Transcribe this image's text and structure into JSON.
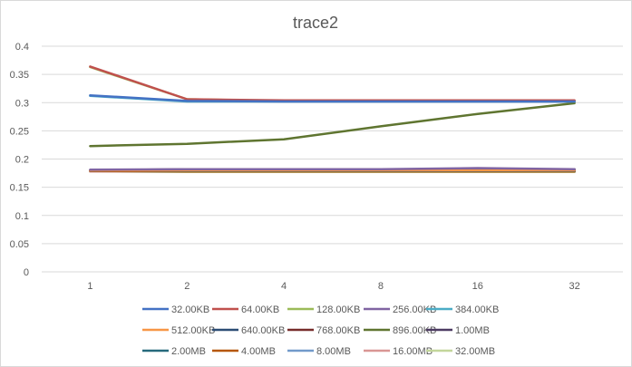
{
  "chart_data": {
    "type": "line",
    "title": "trace2",
    "xlabel": "",
    "ylabel": "",
    "categories": [
      "1",
      "2",
      "4",
      "8",
      "16",
      "32"
    ],
    "ylim": [
      0,
      0.4
    ],
    "yticks": [
      "0",
      "0.05",
      "0.1",
      "0.15",
      "0.2",
      "0.25",
      "0.3",
      "0.35",
      "0.4"
    ],
    "grid": true,
    "legend_position": "bottom",
    "series": [
      {
        "name": "32.00KB",
        "color": "#4472C4",
        "values": [
          0.313,
          0.303,
          0.302,
          0.302,
          0.302,
          0.302
        ]
      },
      {
        "name": "64.00KB",
        "color": "#C0504D",
        "values": [
          0.364,
          0.306,
          0.304,
          0.304,
          0.304,
          0.304
        ]
      },
      {
        "name": "128.00KB",
        "color": "#9BBB59",
        "values": [
          0.363,
          0.306,
          0.303,
          0.303,
          0.303,
          0.303
        ]
      },
      {
        "name": "256.00KB",
        "color": "#8064A2",
        "values": [
          0.181,
          0.182,
          0.182,
          0.182,
          0.184,
          0.182
        ]
      },
      {
        "name": "384.00KB",
        "color": "#4BACC6",
        "values": [
          0.312,
          0.302,
          0.302,
          0.302,
          0.302,
          0.302
        ]
      },
      {
        "name": "512.00KB",
        "color": "#F79646",
        "values": [
          0.18,
          0.18,
          0.18,
          0.18,
          0.18,
          0.18
        ]
      },
      {
        "name": "640.00KB",
        "color": "#2C4D75",
        "values": [
          0.18,
          0.181,
          0.181,
          0.181,
          0.181,
          0.181
        ]
      },
      {
        "name": "768.00KB",
        "color": "#772C2A",
        "values": [
          0.18,
          0.18,
          0.18,
          0.18,
          0.18,
          0.18
        ]
      },
      {
        "name": "896.00KB",
        "color": "#5F7530",
        "values": [
          0.223,
          0.227,
          0.235,
          0.258,
          0.28,
          0.299
        ]
      },
      {
        "name": "1.00MB",
        "color": "#4D3B62",
        "values": [
          0.18,
          0.182,
          0.182,
          0.182,
          0.182,
          0.182
        ]
      },
      {
        "name": "2.00MB",
        "color": "#276A7C",
        "values": [
          0.18,
          0.179,
          0.179,
          0.179,
          0.179,
          0.179
        ]
      },
      {
        "name": "4.00MB",
        "color": "#B65708",
        "values": [
          0.179,
          0.178,
          0.178,
          0.178,
          0.178,
          0.178
        ]
      },
      {
        "name": "8.00MB",
        "color": "#729ACA",
        "values": [
          0.179,
          0.178,
          0.178,
          0.178,
          0.178,
          0.178
        ]
      },
      {
        "name": "16.00MB",
        "color": "#D99694",
        "values": [
          0.178,
          0.178,
          0.178,
          0.178,
          0.178,
          0.178
        ]
      },
      {
        "name": "32.00MB",
        "color": "#C3D69B",
        "values": [
          0.178,
          0.177,
          0.177,
          0.177,
          0.177,
          0.177
        ]
      }
    ]
  }
}
